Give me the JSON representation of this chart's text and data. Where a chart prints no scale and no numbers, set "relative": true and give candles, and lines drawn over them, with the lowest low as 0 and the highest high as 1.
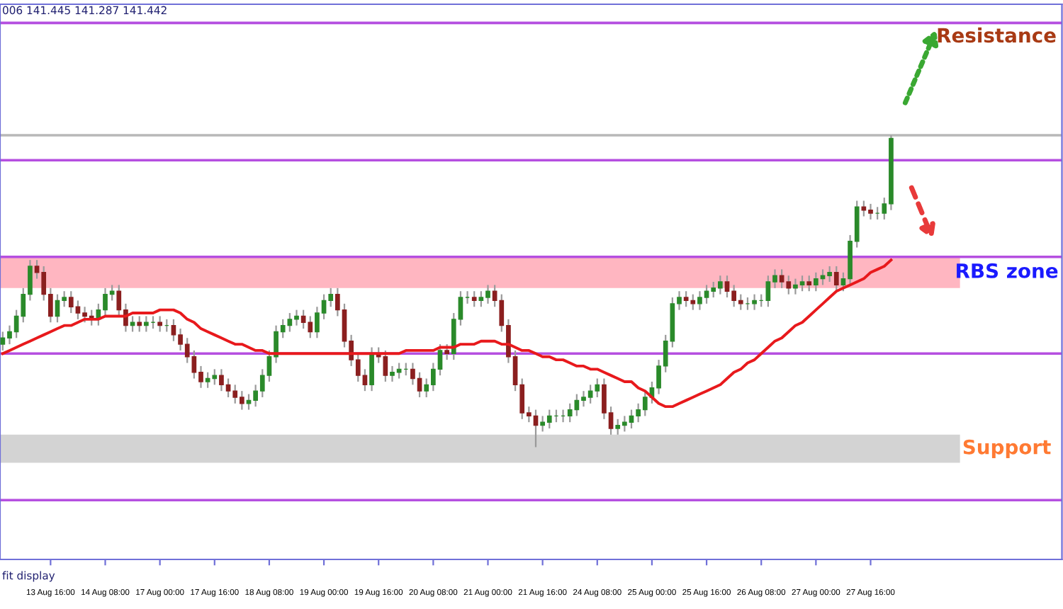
{
  "chart_data": {
    "type": "candlestick",
    "relative": true,
    "grid": false,
    "legend": false,
    "categories": [
      null,
      null,
      null,
      null,
      null,
      null,
      null,
      "13 Aug 16:00",
      null,
      null,
      null,
      null,
      null,
      null,
      null,
      "14 Aug 08:00",
      null,
      null,
      null,
      null,
      null,
      null,
      null,
      "17 Aug 00:00",
      null,
      null,
      null,
      null,
      null,
      null,
      null,
      "17 Aug 16:00",
      null,
      null,
      null,
      null,
      null,
      null,
      null,
      "18 Aug 08:00",
      null,
      null,
      null,
      null,
      null,
      null,
      null,
      "19 Aug 00:00",
      null,
      null,
      null,
      null,
      null,
      null,
      null,
      "19 Aug 16:00",
      null,
      null,
      null,
      null,
      null,
      null,
      null,
      "20 Aug 08:00",
      null,
      null,
      null,
      null,
      null,
      null,
      null,
      "21 Aug 00:00",
      null,
      null,
      null,
      null,
      null,
      null,
      null,
      "21 Aug 16:00",
      null,
      null,
      null,
      null,
      null,
      null,
      null,
      "24 Aug 08:00",
      null,
      null,
      null,
      null,
      null,
      null,
      null,
      "25 Aug 00:00",
      null,
      null,
      null,
      null,
      null,
      null,
      null,
      "25 Aug 16:00",
      null,
      null,
      null,
      null,
      null,
      null,
      null,
      "26 Aug 08:00",
      null,
      null,
      null,
      null,
      null,
      null,
      null,
      "27 Aug 00:00",
      null,
      null,
      null,
      null,
      null,
      null,
      null,
      "27 Aug 16:00",
      null,
      null,
      null
    ],
    "ohlc": [
      [
        0.33,
        0.37,
        0.31,
        0.35
      ],
      [
        0.35,
        0.39,
        0.33,
        0.37
      ],
      [
        0.37,
        0.44,
        0.35,
        0.42
      ],
      [
        0.42,
        0.51,
        0.4,
        0.49
      ],
      [
        0.49,
        0.6,
        0.47,
        0.58
      ],
      [
        0.58,
        0.6,
        0.54,
        0.56
      ],
      [
        0.56,
        0.58,
        0.47,
        0.49
      ],
      [
        0.49,
        0.51,
        0.4,
        0.42
      ],
      [
        0.42,
        0.49,
        0.4,
        0.47
      ],
      [
        0.47,
        0.5,
        0.45,
        0.48
      ],
      [
        0.48,
        0.5,
        0.43,
        0.45
      ],
      [
        0.45,
        0.47,
        0.41,
        0.43
      ],
      [
        0.43,
        0.45,
        0.4,
        0.42
      ],
      [
        0.42,
        0.44,
        0.39,
        0.41
      ],
      [
        0.41,
        0.46,
        0.39,
        0.44
      ],
      [
        0.44,
        0.51,
        0.42,
        0.49
      ],
      [
        0.49,
        0.52,
        0.47,
        0.5
      ],
      [
        0.5,
        0.52,
        0.42,
        0.44
      ],
      [
        0.44,
        0.46,
        0.37,
        0.39
      ],
      [
        0.39,
        0.42,
        0.37,
        0.4
      ],
      [
        0.4,
        0.42,
        0.37,
        0.39
      ],
      [
        0.39,
        0.42,
        0.37,
        0.4
      ],
      [
        0.4,
        0.42,
        0.38,
        0.4
      ],
      [
        0.4,
        0.42,
        0.37,
        0.39
      ],
      [
        0.39,
        0.41,
        0.37,
        0.39
      ],
      [
        0.39,
        0.41,
        0.34,
        0.36
      ],
      [
        0.36,
        0.38,
        0.31,
        0.33
      ],
      [
        0.33,
        0.35,
        0.27,
        0.29
      ],
      [
        0.29,
        0.31,
        0.22,
        0.24
      ],
      [
        0.24,
        0.26,
        0.19,
        0.21
      ],
      [
        0.21,
        0.24,
        0.19,
        0.22
      ],
      [
        0.22,
        0.25,
        0.2,
        0.23
      ],
      [
        0.23,
        0.25,
        0.18,
        0.2
      ],
      [
        0.2,
        0.22,
        0.16,
        0.18
      ],
      [
        0.18,
        0.2,
        0.14,
        0.16
      ],
      [
        0.16,
        0.18,
        0.12,
        0.14
      ],
      [
        0.14,
        0.17,
        0.12,
        0.15
      ],
      [
        0.15,
        0.2,
        0.13,
        0.18
      ],
      [
        0.18,
        0.25,
        0.16,
        0.23
      ],
      [
        0.23,
        0.31,
        0.21,
        0.29
      ],
      [
        0.29,
        0.39,
        0.27,
        0.37
      ],
      [
        0.37,
        0.41,
        0.35,
        0.39
      ],
      [
        0.39,
        0.43,
        0.37,
        0.41
      ],
      [
        0.41,
        0.44,
        0.39,
        0.42
      ],
      [
        0.42,
        0.44,
        0.38,
        0.4
      ],
      [
        0.4,
        0.42,
        0.35,
        0.37
      ],
      [
        0.37,
        0.45,
        0.35,
        0.43
      ],
      [
        0.43,
        0.49,
        0.41,
        0.47
      ],
      [
        0.47,
        0.51,
        0.45,
        0.49
      ],
      [
        0.49,
        0.51,
        0.42,
        0.44
      ],
      [
        0.44,
        0.46,
        0.32,
        0.34
      ],
      [
        0.34,
        0.36,
        0.26,
        0.28
      ],
      [
        0.28,
        0.3,
        0.21,
        0.23
      ],
      [
        0.23,
        0.25,
        0.18,
        0.2
      ],
      [
        0.2,
        0.32,
        0.18,
        0.3
      ],
      [
        0.3,
        0.32,
        0.27,
        0.29
      ],
      [
        0.29,
        0.31,
        0.21,
        0.23
      ],
      [
        0.23,
        0.26,
        0.21,
        0.24
      ],
      [
        0.24,
        0.27,
        0.22,
        0.25
      ],
      [
        0.25,
        0.27,
        0.23,
        0.25
      ],
      [
        0.25,
        0.27,
        0.2,
        0.22
      ],
      [
        0.22,
        0.24,
        0.16,
        0.18
      ],
      [
        0.18,
        0.22,
        0.16,
        0.2
      ],
      [
        0.2,
        0.27,
        0.18,
        0.25
      ],
      [
        0.25,
        0.33,
        0.23,
        0.31
      ],
      [
        0.31,
        0.33,
        0.28,
        0.3
      ],
      [
        0.3,
        0.43,
        0.28,
        0.41
      ],
      [
        0.41,
        0.5,
        0.39,
        0.48
      ],
      [
        0.48,
        0.5,
        0.46,
        0.48
      ],
      [
        0.48,
        0.5,
        0.45,
        0.47
      ],
      [
        0.47,
        0.5,
        0.45,
        0.48
      ],
      [
        0.48,
        0.52,
        0.46,
        0.5
      ],
      [
        0.5,
        0.52,
        0.45,
        0.47
      ],
      [
        0.47,
        0.49,
        0.37,
        0.39
      ],
      [
        0.39,
        0.41,
        0.27,
        0.29
      ],
      [
        0.29,
        0.31,
        0.18,
        0.2
      ],
      [
        0.2,
        0.22,
        0.09,
        0.11
      ],
      [
        0.11,
        0.13,
        0.08,
        0.1
      ],
      [
        0.1,
        0.12,
        0.0,
        0.07
      ],
      [
        0.07,
        0.1,
        0.05,
        0.08
      ],
      [
        0.08,
        0.12,
        0.06,
        0.1
      ],
      [
        0.1,
        0.12,
        0.08,
        0.1
      ],
      [
        0.1,
        0.12,
        0.08,
        0.1
      ],
      [
        0.1,
        0.14,
        0.08,
        0.12
      ],
      [
        0.12,
        0.17,
        0.1,
        0.15
      ],
      [
        0.15,
        0.18,
        0.13,
        0.16
      ],
      [
        0.16,
        0.2,
        0.14,
        0.18
      ],
      [
        0.18,
        0.22,
        0.16,
        0.2
      ],
      [
        0.2,
        0.22,
        0.09,
        0.11
      ],
      [
        0.11,
        0.13,
        0.04,
        0.06
      ],
      [
        0.06,
        0.09,
        0.04,
        0.07
      ],
      [
        0.07,
        0.1,
        0.05,
        0.08
      ],
      [
        0.08,
        0.12,
        0.06,
        0.1
      ],
      [
        0.1,
        0.14,
        0.08,
        0.12
      ],
      [
        0.12,
        0.18,
        0.1,
        0.16
      ],
      [
        0.16,
        0.21,
        0.14,
        0.19
      ],
      [
        0.19,
        0.28,
        0.17,
        0.26
      ],
      [
        0.26,
        0.36,
        0.24,
        0.34
      ],
      [
        0.34,
        0.48,
        0.32,
        0.46
      ],
      [
        0.46,
        0.5,
        0.44,
        0.48
      ],
      [
        0.48,
        0.5,
        0.45,
        0.47
      ],
      [
        0.47,
        0.49,
        0.44,
        0.46
      ],
      [
        0.46,
        0.5,
        0.44,
        0.48
      ],
      [
        0.48,
        0.52,
        0.46,
        0.5
      ],
      [
        0.5,
        0.53,
        0.48,
        0.51
      ],
      [
        0.51,
        0.55,
        0.49,
        0.53
      ],
      [
        0.53,
        0.55,
        0.48,
        0.5
      ],
      [
        0.5,
        0.52,
        0.45,
        0.47
      ],
      [
        0.47,
        0.49,
        0.44,
        0.46
      ],
      [
        0.46,
        0.48,
        0.44,
        0.46
      ],
      [
        0.46,
        0.49,
        0.44,
        0.47
      ],
      [
        0.47,
        0.49,
        0.45,
        0.47
      ],
      [
        0.47,
        0.55,
        0.45,
        0.53
      ],
      [
        0.53,
        0.57,
        0.51,
        0.55
      ],
      [
        0.55,
        0.57,
        0.51,
        0.53
      ],
      [
        0.53,
        0.55,
        0.49,
        0.51
      ],
      [
        0.51,
        0.54,
        0.49,
        0.52
      ],
      [
        0.52,
        0.55,
        0.5,
        0.53
      ],
      [
        0.53,
        0.55,
        0.5,
        0.52
      ],
      [
        0.52,
        0.56,
        0.5,
        0.54
      ],
      [
        0.54,
        0.57,
        0.52,
        0.55
      ],
      [
        0.55,
        0.58,
        0.53,
        0.56
      ],
      [
        0.56,
        0.58,
        0.5,
        0.52
      ],
      [
        0.52,
        0.56,
        0.5,
        0.54
      ],
      [
        0.54,
        0.68,
        0.52,
        0.66
      ],
      [
        0.66,
        0.79,
        0.64,
        0.77
      ],
      [
        0.77,
        0.79,
        0.74,
        0.76
      ],
      [
        0.76,
        0.78,
        0.73,
        0.75
      ],
      [
        0.75,
        0.77,
        0.73,
        0.75
      ],
      [
        0.75,
        0.8,
        0.73,
        0.78
      ],
      [
        0.78,
        1.0,
        0.76,
        0.99
      ]
    ],
    "series": [
      {
        "type": "line",
        "color": "#e8191c",
        "values": [
          0.3,
          0.31,
          0.32,
          0.33,
          0.34,
          0.35,
          0.36,
          0.37,
          0.38,
          0.39,
          0.39,
          0.4,
          0.41,
          0.41,
          0.41,
          0.42,
          0.42,
          0.42,
          0.42,
          0.43,
          0.43,
          0.43,
          0.43,
          0.44,
          0.44,
          0.44,
          0.43,
          0.41,
          0.4,
          0.38,
          0.37,
          0.36,
          0.35,
          0.34,
          0.33,
          0.33,
          0.32,
          0.31,
          0.31,
          0.3,
          0.3,
          0.3,
          0.3,
          0.3,
          0.3,
          0.3,
          0.3,
          0.3,
          0.3,
          0.3,
          0.3,
          0.3,
          0.3,
          0.3,
          0.3,
          0.3,
          0.3,
          0.3,
          0.3,
          0.31,
          0.31,
          0.31,
          0.31,
          0.31,
          0.32,
          0.32,
          0.32,
          0.33,
          0.33,
          0.33,
          0.34,
          0.34,
          0.34,
          0.33,
          0.33,
          0.32,
          0.31,
          0.31,
          0.3,
          0.29,
          0.29,
          0.28,
          0.28,
          0.27,
          0.26,
          0.26,
          0.25,
          0.25,
          0.24,
          0.23,
          0.22,
          0.21,
          0.21,
          0.19,
          0.18,
          0.16,
          0.14,
          0.13,
          0.13,
          0.14,
          0.15,
          0.16,
          0.17,
          0.18,
          0.19,
          0.2,
          0.22,
          0.24,
          0.25,
          0.27,
          0.28,
          0.3,
          0.32,
          0.34,
          0.35,
          0.37,
          0.39,
          0.4,
          0.42,
          0.44,
          0.46,
          0.48,
          0.5,
          0.51,
          0.52,
          0.53,
          0.54,
          0.56,
          0.57,
          0.58,
          0.6
        ]
      }
    ],
    "ref_lines": [
      {
        "axis": "y",
        "value": 1.36,
        "label": "Resistance",
        "color": "#b54fe0"
      },
      {
        "axis": "y",
        "value": 1.0,
        "color": "#b8b8b8"
      },
      {
        "axis": "y",
        "value": 0.92,
        "color": "#b54fe0"
      },
      {
        "axis": "y",
        "value": 0.61,
        "color": "#b54fe0"
      },
      {
        "axis": "y",
        "value": 0.3,
        "color": "#b54fe0"
      },
      {
        "axis": "y",
        "value": -0.17,
        "color": "#b54fe0"
      }
    ],
    "bands": [
      {
        "axis": "y",
        "from": 0.51,
        "to": 0.61,
        "label": "RBS zone",
        "color": "#ffb6c1"
      },
      {
        "axis": "y",
        "from": -0.05,
        "to": 0.04,
        "label": "Support",
        "color": "#d3d3d3"
      }
    ],
    "annotations": [
      "006 141.445 141.287 141.442",
      "fit display"
    ]
  }
}
